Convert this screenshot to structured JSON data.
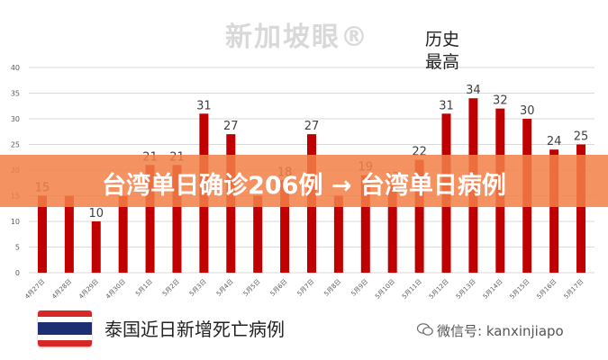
{
  "watermark": {
    "logo_text": "新加坡眼®"
  },
  "annotation": {
    "line1": "历史",
    "line2": "最高"
  },
  "banner": {
    "text": "台湾单日确诊206例 → 台湾单日病例"
  },
  "footer": {
    "title": "泰国近日新增死亡病例",
    "wechat_label": "微信号: kanxinjiapo"
  },
  "colors": {
    "bar": "#c00000",
    "banner": "#f38048",
    "grid": "#d9d9d9",
    "axis_text": "#595959"
  },
  "chart_data": {
    "type": "bar",
    "categories": [
      "4月27日",
      "4月28日",
      "4月29日",
      "4月30日",
      "5月1日",
      "5月2日",
      "5月3日",
      "5月4日",
      "5月5日",
      "5月6日",
      "5月7日",
      "5月8日",
      "5月9日",
      "5月10日",
      "5月11日",
      "5月12日",
      "5月13日",
      "5月14日",
      "5月15日",
      "5月16日",
      "5月17日"
    ],
    "values": [
      15,
      15,
      10,
      15,
      21,
      21,
      31,
      27,
      15,
      18,
      27,
      15,
      19,
      17,
      22,
      31,
      34,
      32,
      30,
      24,
      25
    ],
    "data_labels": [
      "15",
      "",
      "10",
      "",
      "21",
      "21",
      "31",
      "27",
      "",
      "18",
      "27",
      "",
      "19",
      "17",
      "22",
      "31",
      "34",
      "32",
      "30",
      "24",
      "25"
    ],
    "yticks": [
      0,
      5,
      10,
      15,
      20,
      25,
      30,
      35,
      40
    ],
    "ylim": [
      0,
      40
    ],
    "grid": true,
    "legend": "none"
  }
}
